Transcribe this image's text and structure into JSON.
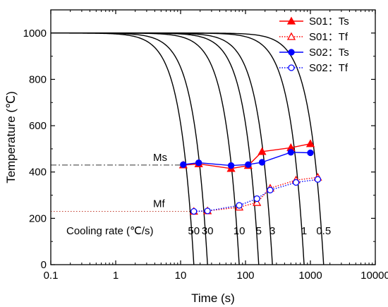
{
  "chart_data": {
    "type": "line",
    "xlabel": "Time (s)",
    "ylabel": "Temperature (℃)",
    "xscale": "log",
    "xlim": [
      0.1,
      10000
    ],
    "ylim": [
      0,
      1100
    ],
    "xticks": [
      {
        "value": 0.1,
        "label": "0.1"
      },
      {
        "value": 1,
        "label": "1"
      },
      {
        "value": 10,
        "label": "10"
      },
      {
        "value": 100,
        "label": "100"
      },
      {
        "value": 1000,
        "label": "1000"
      },
      {
        "value": 10000,
        "label": "10000"
      }
    ],
    "yticks": [
      {
        "value": 0,
        "label": "0"
      },
      {
        "value": 200,
        "label": "200"
      },
      {
        "value": 400,
        "label": "400"
      },
      {
        "value": 600,
        "label": "600"
      },
      {
        "value": 800,
        "label": "800"
      },
      {
        "value": 1000,
        "label": "1000"
      }
    ],
    "grid": false,
    "legend_position": "top-right",
    "cooling_curves": {
      "label_prefix": "Cooling rate (℃/s)",
      "curves": [
        {
          "label": "50",
          "end_time": 16
        },
        {
          "label": "30",
          "end_time": 26
        },
        {
          "label": "10",
          "end_time": 80
        },
        {
          "label": "5",
          "end_time": 160
        },
        {
          "label": "3",
          "end_time": 260
        },
        {
          "label": "1",
          "end_time": 800
        },
        {
          "label": "0.5",
          "end_time": 1600
        }
      ]
    },
    "reference_lines": [
      {
        "label": "Ms",
        "y": 430,
        "style": "dashdot"
      },
      {
        "label": "Mf",
        "y": 230,
        "style": "dotted"
      }
    ],
    "series": [
      {
        "name": "S01：Ts",
        "color": "#ff0000",
        "line": "solid",
        "marker": "triangle",
        "filled": true,
        "x": [
          11,
          19,
          60,
          110,
          180,
          500,
          1000
        ],
        "y": [
          430,
          435,
          415,
          428,
          488,
          505,
          522
        ]
      },
      {
        "name": "S01：Tf",
        "color": "#ff0000",
        "line": "dotted",
        "marker": "triangle",
        "filled": false,
        "x": [
          16,
          26,
          80,
          150,
          240,
          600,
          1300
        ],
        "y": [
          230,
          232,
          248,
          268,
          330,
          365,
          377
        ]
      },
      {
        "name": "S02：Ts",
        "color": "#0000ff",
        "line": "solid",
        "marker": "circle",
        "filled": true,
        "x": [
          11,
          19,
          60,
          110,
          180,
          500,
          1000
        ],
        "y": [
          432,
          440,
          428,
          432,
          442,
          485,
          483
        ]
      },
      {
        "name": "S02：Tf",
        "color": "#0000ff",
        "line": "dotted",
        "marker": "circle",
        "filled": false,
        "x": [
          16,
          26,
          80,
          150,
          240,
          600,
          1300
        ],
        "y": [
          230,
          232,
          256,
          285,
          322,
          355,
          368
        ]
      }
    ]
  }
}
